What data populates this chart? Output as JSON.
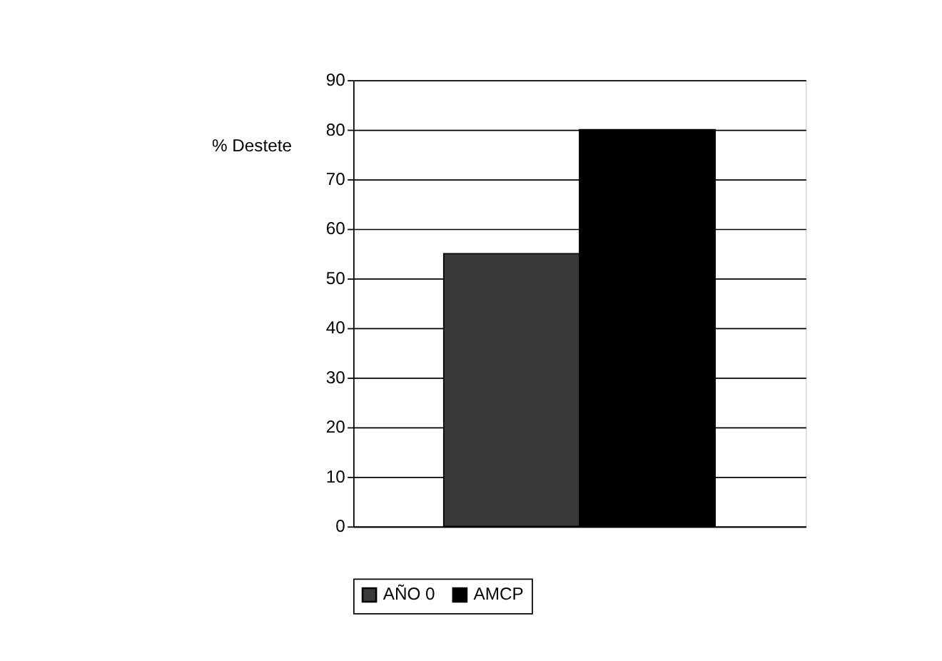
{
  "chart_data": {
    "type": "bar",
    "ylabel": "% Destete",
    "categories": [
      null
    ],
    "series": [
      {
        "name": "AÑO 0",
        "color": "#3a3a3a",
        "values": [
          55
        ]
      },
      {
        "name": "AMCP",
        "color": "#000000",
        "values": [
          80
        ]
      }
    ],
    "ylim": [
      0,
      90
    ],
    "yticks": [
      0,
      10,
      20,
      30,
      40,
      50,
      60,
      70,
      80,
      90
    ],
    "grid": "y",
    "legend": "bottom"
  }
}
